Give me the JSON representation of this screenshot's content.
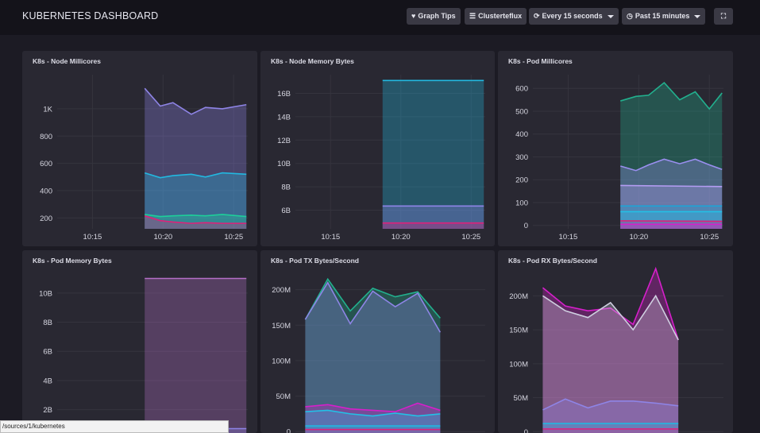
{
  "header": {
    "title": "KUBERNETES DASHBOARD",
    "buttons": {
      "graph_tips": "Graph Tips",
      "source": "Clusterteflux",
      "refresh": "Every 15 seconds",
      "range": "Past 15 minutes"
    }
  },
  "status_bar": {
    "url": "/sources/1/kubernetes"
  },
  "colors": {
    "violet": "#9a8ff0",
    "cyan": "#22c1e6",
    "teal": "#22b08e",
    "magenta": "#d61fcb",
    "pink": "#ff4fb2",
    "grid": "#35343e"
  },
  "chart_data": [
    {
      "type": "area",
      "title": "K8s - Node Millicores",
      "yticks": [
        "200",
        "400",
        "600",
        "800",
        "1K"
      ],
      "xticks": [
        "10:15",
        "10:20",
        "10:25"
      ],
      "ylim": [
        120,
        1250
      ],
      "tick_values": [
        200,
        400,
        600,
        800,
        1000
      ],
      "x_ticks_minutes": [
        15,
        20,
        25
      ],
      "xlim": [
        12.5,
        26
      ],
      "series": [
        {
          "color": "#8e84e6",
          "x": [
            18.7,
            19.8,
            20.7,
            22,
            23,
            24.2,
            25.9
          ],
          "values": [
            1150,
            1020,
            1045,
            960,
            1010,
            1000,
            1030
          ]
        },
        {
          "color": "#22b8e0",
          "x": [
            18.7,
            19.8,
            20.7,
            22,
            23,
            24.2,
            25.9
          ],
          "values": [
            530,
            495,
            510,
            520,
            500,
            530,
            520
          ]
        },
        {
          "color": "#1ecf9a",
          "x": [
            18.7,
            19.8,
            20.7,
            22,
            23,
            24.2,
            25.9
          ],
          "values": [
            225,
            210,
            215,
            220,
            215,
            225,
            210
          ]
        },
        {
          "color": "#e0207a",
          "x": [
            18.7,
            19.8,
            20.7,
            22,
            23,
            24.2,
            25.9
          ],
          "values": [
            215,
            180,
            170,
            160,
            165,
            160,
            160
          ]
        }
      ]
    },
    {
      "type": "area",
      "title": "K8s - Node Memory Bytes",
      "yticks": [
        "6B",
        "8B",
        "10B",
        "12B",
        "14B",
        "16B"
      ],
      "xticks": [
        "10:15",
        "10:20",
        "10:25"
      ],
      "ylim": [
        4.4,
        17.6
      ],
      "tick_values": [
        6,
        8,
        10,
        12,
        14,
        16
      ],
      "x_ticks_minutes": [
        15,
        20,
        25
      ],
      "xlim": [
        12.5,
        26
      ],
      "series": [
        {
          "color": "#22b8e0",
          "x": [
            18.7,
            25.9
          ],
          "values": [
            17.1,
            17.1
          ]
        },
        {
          "color": "#8e84e6",
          "x": [
            18.7,
            25.9
          ],
          "values": [
            6.35,
            6.35
          ]
        },
        {
          "color": "#e0207a",
          "x": [
            18.7,
            25.9
          ],
          "values": [
            4.9,
            4.9
          ]
        }
      ]
    },
    {
      "type": "area",
      "title": "K8s - Pod Millicores",
      "yticks": [
        "0",
        "100",
        "200",
        "300",
        "400",
        "500",
        "600"
      ],
      "xticks": [
        "10:15",
        "10:20",
        "10:25"
      ],
      "ylim": [
        -15,
        660
      ],
      "tick_values": [
        0,
        100,
        200,
        300,
        400,
        500,
        600
      ],
      "x_ticks_minutes": [
        15,
        20,
        25
      ],
      "xlim": [
        12.5,
        26
      ],
      "series": [
        {
          "color": "#22b08e",
          "x": [
            18.7,
            19.8,
            20.7,
            21.8,
            22.9,
            24,
            25,
            25.9
          ],
          "values": [
            545,
            565,
            570,
            625,
            550,
            585,
            510,
            580
          ]
        },
        {
          "color": "#9a8ff0",
          "x": [
            18.7,
            19.8,
            20.7,
            21.8,
            22.9,
            24,
            25,
            25.9
          ],
          "values": [
            260,
            240,
            265,
            290,
            270,
            290,
            265,
            245
          ]
        },
        {
          "color": "#b39cf2",
          "x": [
            18.7,
            25.9
          ],
          "values": [
            175,
            170
          ]
        },
        {
          "color": "#1aa6d8",
          "x": [
            18.7,
            25.9
          ],
          "values": [
            85,
            85
          ]
        },
        {
          "color": "#22c1e6",
          "x": [
            18.7,
            25.9
          ],
          "values": [
            60,
            60
          ]
        },
        {
          "color": "#e0207a",
          "x": [
            18.7,
            25.9
          ],
          "values": [
            20,
            18
          ]
        },
        {
          "color": "#d61fcb",
          "x": [
            18.7,
            25.9
          ],
          "values": [
            5,
            5
          ]
        }
      ]
    },
    {
      "type": "area",
      "title": "K8s - Pod Memory Bytes",
      "yticks": [
        "2B",
        "4B",
        "6B",
        "8B",
        "10B"
      ],
      "xticks": [],
      "ylim": [
        0.4,
        11.3
      ],
      "tick_values": [
        2,
        4,
        6,
        8,
        10
      ],
      "x_ticks_minutes": [],
      "xlim": [
        12.5,
        26
      ],
      "series": [
        {
          "color": "#b56fc8",
          "x": [
            18.7,
            25.9
          ],
          "values": [
            11.0,
            11.0
          ]
        },
        {
          "color": "#8e84e6",
          "x": [
            18.7,
            25.9
          ],
          "values": [
            0.7,
            0.7
          ]
        }
      ]
    },
    {
      "type": "area",
      "title": "K8s - Pod TX Bytes/Second",
      "yticks": [
        "0",
        "50M",
        "100M",
        "150M",
        "200M"
      ],
      "xticks": [],
      "ylim": [
        -2,
        222
      ],
      "tick_values": [
        0,
        50,
        100,
        150,
        200
      ],
      "x_ticks_minutes": [],
      "xlim": [
        12.5,
        26
      ],
      "series": [
        {
          "color": "#22b08e",
          "x": [
            13.2,
            14.8,
            16.4,
            18,
            19.6,
            21.2,
            22.8
          ],
          "values": [
            158,
            215,
            170,
            202,
            190,
            197,
            160
          ]
        },
        {
          "color": "#8e84e6",
          "x": [
            13.2,
            14.8,
            16.4,
            18,
            19.6,
            21.2,
            22.8
          ],
          "values": [
            158,
            210,
            152,
            198,
            176,
            195,
            140
          ]
        },
        {
          "color": "#d61fcb",
          "x": [
            13.2,
            14.8,
            16.4,
            18,
            19.6,
            21.2,
            22.8
          ],
          "values": [
            35,
            38,
            32,
            30,
            28,
            40,
            30
          ]
        },
        {
          "color": "#22c1e6",
          "x": [
            13.2,
            14.8,
            16.4,
            18,
            19.6,
            21.2,
            22.8
          ],
          "values": [
            28,
            30,
            25,
            22,
            26,
            22,
            25
          ]
        },
        {
          "color": "#22b8e0",
          "x": [
            13.2,
            22.8
          ],
          "values": [
            8,
            8
          ]
        },
        {
          "color": "#e0207a",
          "x": [
            13.2,
            22.8
          ],
          "values": [
            3,
            3
          ]
        }
      ]
    },
    {
      "type": "area",
      "title": "K8s - Pod RX Bytes/Second",
      "yticks": [
        "0",
        "50M",
        "100M",
        "150M",
        "200M"
      ],
      "xticks": [],
      "ylim": [
        -2,
        232
      ],
      "tick_values": [
        0,
        50,
        100,
        150,
        200
      ],
      "x_ticks_minutes": [],
      "xlim": [
        12.5,
        26
      ],
      "series": [
        {
          "color": "#d61fcb",
          "x": [
            13.2,
            14.8,
            16.4,
            18,
            19.6,
            21.2,
            22.8
          ],
          "values": [
            212,
            185,
            178,
            182,
            158,
            240,
            135
          ]
        },
        {
          "color": "#cfcfe0",
          "x": [
            13.2,
            14.8,
            16.4,
            18,
            19.6,
            21.2,
            22.8
          ],
          "values": [
            200,
            178,
            168,
            190,
            150,
            200,
            135
          ]
        },
        {
          "color": "#8e84e6",
          "x": [
            13.2,
            14.8,
            16.4,
            18,
            19.6,
            21.2,
            22.8
          ],
          "values": [
            32,
            48,
            35,
            45,
            45,
            42,
            38
          ]
        },
        {
          "color": "#22b8e0",
          "x": [
            13.2,
            22.8
          ],
          "values": [
            12,
            12
          ]
        },
        {
          "color": "#e0207a",
          "x": [
            13.2,
            22.8
          ],
          "values": [
            4,
            4
          ]
        }
      ]
    }
  ]
}
